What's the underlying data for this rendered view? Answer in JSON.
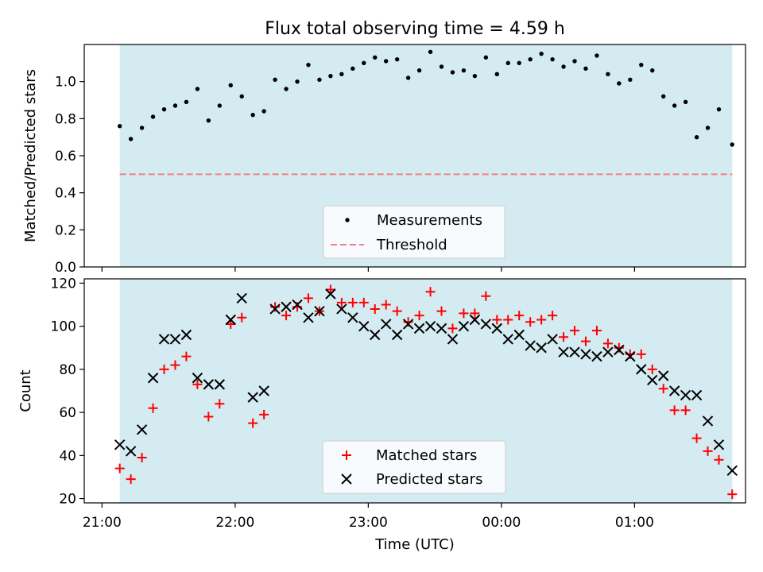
{
  "chart_data": [
    {
      "type": "scatter",
      "title": "Flux total observing time = 4.59 h",
      "xlabel": "",
      "ylabel": "Matched/Predicted stars",
      "ylim": [
        0,
        1.2
      ],
      "yticks": [
        0.0,
        0.2,
        0.4,
        0.6,
        0.8,
        1.0
      ],
      "ytick_labels": [
        "0.0",
        "0.2",
        "0.4",
        "0.6",
        "0.8",
        "1.0"
      ],
      "observing_span": [
        "21:08",
        "01:44"
      ],
      "threshold": 0.5,
      "legend": [
        "Measurements",
        "Threshold"
      ],
      "legend_position": "bottom-center",
      "shade_color": "#d4ebf2",
      "threshold_color": "#f08080",
      "x": [
        "21:08",
        "21:13",
        "21:18",
        "21:23",
        "21:28",
        "21:33",
        "21:38",
        "21:43",
        "21:48",
        "21:53",
        "21:58",
        "22:03",
        "22:08",
        "22:13",
        "22:18",
        "22:23",
        "22:28",
        "22:33",
        "22:38",
        "22:43",
        "22:48",
        "22:53",
        "22:58",
        "23:03",
        "23:08",
        "23:13",
        "23:18",
        "23:23",
        "23:28",
        "23:33",
        "23:38",
        "23:43",
        "23:48",
        "23:53",
        "23:58",
        "00:03",
        "00:08",
        "00:13",
        "00:18",
        "00:23",
        "00:28",
        "00:33",
        "00:38",
        "00:43",
        "00:48",
        "00:53",
        "00:58",
        "01:03",
        "01:08",
        "01:13",
        "01:18",
        "01:23",
        "01:28",
        "01:33",
        "01:38",
        "01:44"
      ],
      "values": [
        0.76,
        0.69,
        0.75,
        0.81,
        0.85,
        0.87,
        0.89,
        0.96,
        0.79,
        0.87,
        0.98,
        0.92,
        0.82,
        0.84,
        1.01,
        0.96,
        1.0,
        1.09,
        1.01,
        1.03,
        1.04,
        1.07,
        1.1,
        1.13,
        1.11,
        1.12,
        1.02,
        1.06,
        1.16,
        1.08,
        1.05,
        1.06,
        1.03,
        1.13,
        1.04,
        1.1,
        1.1,
        1.12,
        1.15,
        1.12,
        1.08,
        1.11,
        1.07,
        1.14,
        1.04,
        0.99,
        1.01,
        1.09,
        1.06,
        0.92,
        0.87,
        0.89,
        0.7,
        0.75,
        0.85,
        0.66
      ]
    },
    {
      "type": "scatter",
      "title": "",
      "xlabel": "Time (UTC)",
      "ylabel": "Count",
      "ylim": [
        18,
        122
      ],
      "yticks": [
        20,
        40,
        60,
        80,
        100,
        120
      ],
      "ytick_labels": [
        "20",
        "40",
        "60",
        "80",
        "100",
        "120"
      ],
      "xlim": [
        "20:52",
        "01:50"
      ],
      "xticks": [
        "21:00",
        "22:00",
        "23:00",
        "00:00",
        "01:00"
      ],
      "xtick_labels": [
        "21:00",
        "22:00",
        "23:00",
        "00:00",
        "01:00"
      ],
      "legend_position": "bottom-center",
      "x": [
        "21:08",
        "21:13",
        "21:18",
        "21:23",
        "21:28",
        "21:33",
        "21:38",
        "21:43",
        "21:48",
        "21:53",
        "21:58",
        "22:03",
        "22:08",
        "22:13",
        "22:18",
        "22:23",
        "22:28",
        "22:33",
        "22:38",
        "22:43",
        "22:48",
        "22:53",
        "22:58",
        "23:03",
        "23:08",
        "23:13",
        "23:18",
        "23:23",
        "23:28",
        "23:33",
        "23:38",
        "23:43",
        "23:48",
        "23:53",
        "23:58",
        "00:03",
        "00:08",
        "00:13",
        "00:18",
        "00:23",
        "00:28",
        "00:33",
        "00:38",
        "00:43",
        "00:48",
        "00:53",
        "00:58",
        "01:03",
        "01:08",
        "01:13",
        "01:18",
        "01:23",
        "01:28",
        "01:33",
        "01:38",
        "01:44"
      ],
      "series": [
        {
          "name": "Matched stars",
          "marker": "plus",
          "color": "#ff0000",
          "values": [
            34,
            29,
            39,
            62,
            80,
            82,
            86,
            73,
            58,
            64,
            101,
            104,
            55,
            59,
            109,
            105,
            109,
            113,
            107,
            117,
            111,
            111,
            111,
            108,
            110,
            107,
            102,
            105,
            116,
            107,
            99,
            106,
            106,
            114,
            103,
            103,
            105,
            102,
            103,
            105,
            95,
            98,
            93,
            98,
            92,
            90,
            87,
            87,
            80,
            71,
            61,
            61,
            48,
            42,
            38,
            22
          ]
        },
        {
          "name": "Predicted stars",
          "marker": "x",
          "color": "#000000",
          "values": [
            45,
            42,
            52,
            76,
            94,
            94,
            96,
            76,
            73,
            73,
            103,
            113,
            67,
            70,
            108,
            109,
            110,
            104,
            107,
            115,
            108,
            104,
            100,
            96,
            101,
            96,
            101,
            99,
            100,
            99,
            94,
            100,
            103,
            101,
            99,
            94,
            96,
            91,
            90,
            94,
            88,
            88,
            87,
            86,
            88,
            89,
            86,
            80,
            75,
            77,
            70,
            68,
            68,
            56,
            45,
            33
          ]
        }
      ]
    }
  ]
}
